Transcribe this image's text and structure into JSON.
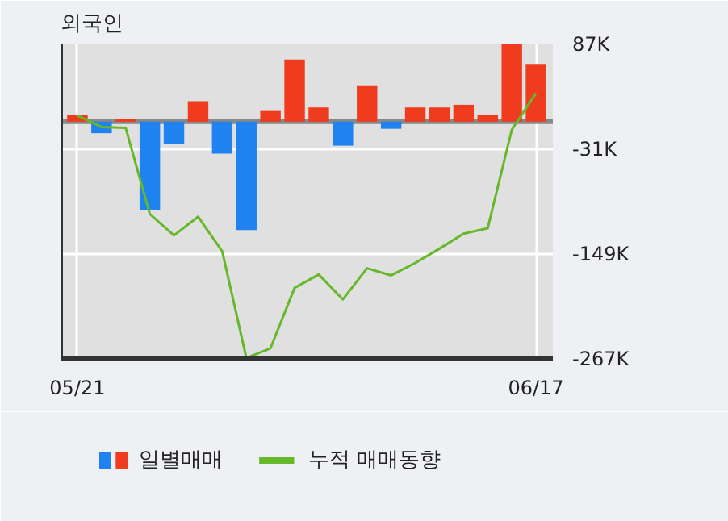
{
  "chart_data": {
    "type": "bar",
    "title": "외국인",
    "categories": [
      "05/21",
      null,
      null,
      null,
      null,
      null,
      null,
      null,
      null,
      null,
      null,
      null,
      null,
      null,
      null,
      null,
      null,
      null,
      null,
      "06/17"
    ],
    "series": [
      {
        "name": "일별매매",
        "values": [
          8,
          -13,
          3,
          -99,
          -25,
          23,
          -36,
          -122,
          12,
          70,
          16,
          -27,
          40,
          -8,
          16,
          16,
          19,
          8,
          87,
          65
        ],
        "colors": [
          "#f03c1e",
          "#1e82f0",
          "#f03c1e",
          "#1e82f0",
          "#1e82f0",
          "#f03c1e",
          "#1e82f0",
          "#1e82f0",
          "#f03c1e",
          "#f03c1e",
          "#f03c1e",
          "#1e82f0",
          "#f03c1e",
          "#1e82f0",
          "#f03c1e",
          "#f03c1e",
          "#f03c1e",
          "#f03c1e",
          "#f03c1e",
          "#f03c1e"
        ]
      },
      {
        "name": "누적 매매동향",
        "type": "line",
        "color": "#66b82a",
        "values": [
          7,
          -6,
          -7,
          -104,
          -128,
          -107,
          -146,
          -266,
          -255,
          -187,
          -172,
          -200,
          -165,
          -173,
          -159,
          -143,
          -126,
          -120,
          -9,
          32
        ]
      }
    ],
    "ylim": [
      -267,
      87
    ],
    "yticks": [
      {
        "value": 87,
        "label": "87K"
      },
      {
        "value": -31,
        "label": "-31K"
      },
      {
        "value": -149,
        "label": "-149K"
      },
      {
        "value": -267,
        "label": "-267K"
      }
    ],
    "ref_lines": [
      {
        "axis": "y",
        "value": 0,
        "color": "#888888"
      }
    ],
    "grid": true,
    "legend": "bottom"
  }
}
